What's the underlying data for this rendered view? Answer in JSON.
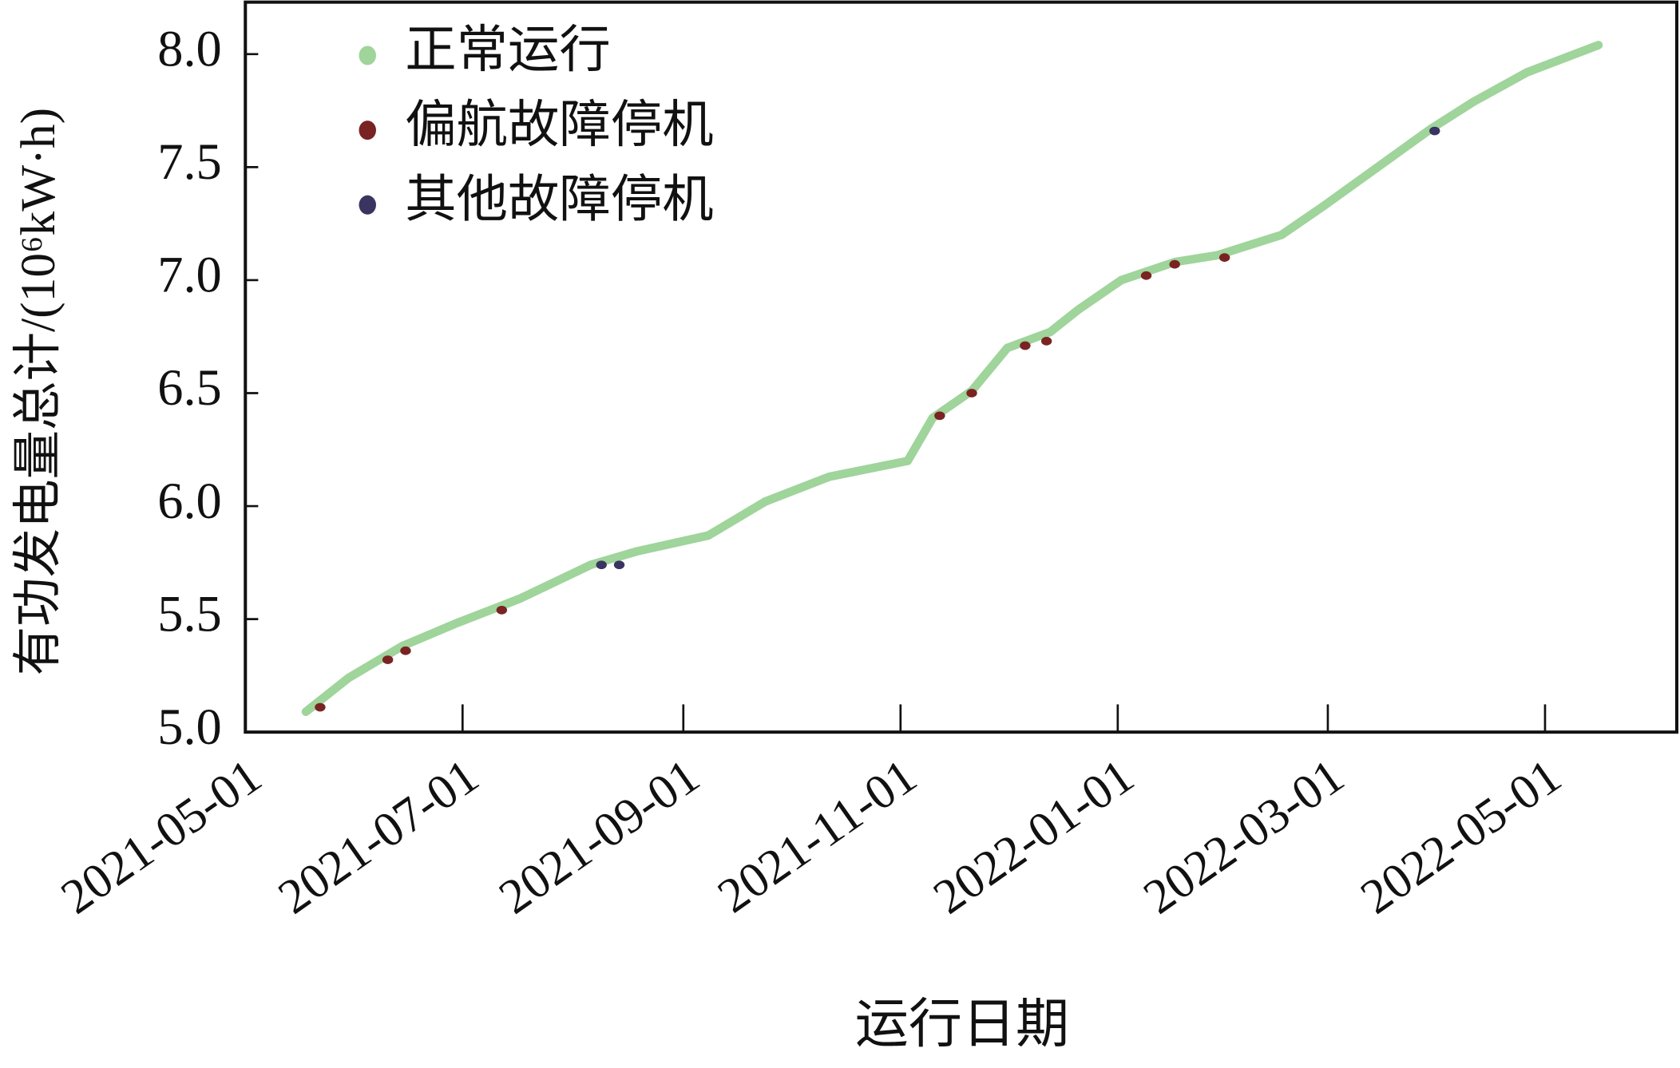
{
  "chart_data": {
    "type": "scatter",
    "x_label": "运行日期",
    "y_label": "有功发电量总计/(10⁶kW·h)",
    "xlim": [
      "2021-05-01",
      "2022-06-07"
    ],
    "ylim": [
      5.0,
      8.23
    ],
    "xticks": [
      "2021-05-01",
      "2021-07-01",
      "2021-09-01",
      "2021-11-01",
      "2022-01-01",
      "2022-03-01",
      "2022-05-01"
    ],
    "yticks": [
      {
        "value": 5,
        "label": "5.0"
      },
      5.5,
      {
        "value": 6,
        "label": "6.0"
      },
      6.5,
      {
        "value": 7,
        "label": "7.0"
      },
      7.5,
      {
        "value": 8,
        "label": "8.0"
      }
    ],
    "legend": "upper-left",
    "series": [
      {
        "name": "正常运行",
        "color": "#9fd49b",
        "mode": "line",
        "x": [
          "2021-05-18",
          "2021-05-30",
          "2021-06-14",
          "2021-06-29",
          "2021-07-17",
          "2021-08-06",
          "2021-08-19",
          "2021-09-08",
          "2021-09-24",
          "2021-10-12",
          "2021-11-03",
          "2021-11-10",
          "2021-11-21",
          "2021-12-01",
          "2021-12-13",
          "2021-12-21",
          "2022-01-02",
          "2022-01-17",
          "2022-01-29",
          "2022-02-16",
          "2022-02-28",
          "2022-03-15",
          "2022-03-30",
          "2022-04-11",
          "2022-04-26",
          "2022-05-16"
        ],
        "values": [
          5.09,
          5.24,
          5.38,
          5.48,
          5.59,
          5.74,
          5.8,
          5.87,
          6.02,
          6.13,
          6.2,
          6.39,
          6.51,
          6.7,
          6.77,
          6.87,
          7.0,
          7.08,
          7.11,
          7.2,
          7.33,
          7.5,
          7.67,
          7.79,
          7.92,
          8.04
        ]
      },
      {
        "name": "偏航故障停机",
        "color": "#7a2323",
        "mode": "points",
        "x": [
          "2021-05-22",
          "2021-06-10",
          "2021-06-15",
          "2021-07-12",
          "2021-11-12",
          "2021-11-21",
          "2021-12-06",
          "2021-12-12",
          "2022-01-09",
          "2022-01-17",
          "2022-01-31"
        ],
        "values": [
          5.11,
          5.32,
          5.36,
          5.54,
          6.4,
          6.5,
          6.71,
          6.73,
          7.02,
          7.07,
          7.1
        ]
      },
      {
        "name": "其他故障停机",
        "color": "#3a3560",
        "mode": "points",
        "x": [
          "2021-08-09",
          "2021-08-14",
          "2022-03-31"
        ],
        "values": [
          5.74,
          5.74,
          7.66
        ]
      }
    ]
  }
}
